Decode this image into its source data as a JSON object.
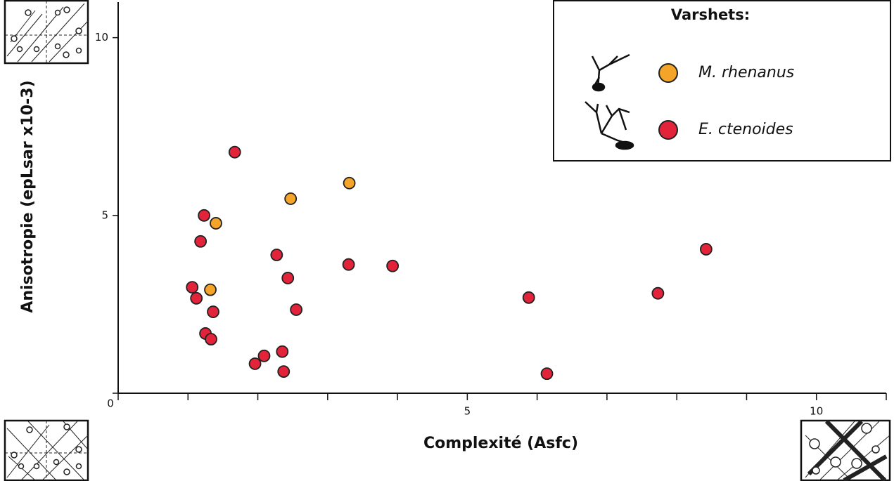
{
  "chart_data": {
    "type": "scatter",
    "x_label": "Complexité (Asfc)",
    "y_label": "Anisotropie (epLsar x10-3)",
    "xlim": [
      0,
      11
    ],
    "ylim": [
      0,
      11
    ],
    "xticks": [
      0,
      5,
      10
    ],
    "yticks": [
      0,
      5,
      10
    ],
    "xminorticks": [
      1,
      2,
      3,
      4,
      6,
      7,
      8,
      9,
      11
    ],
    "legend_title": "Varshets:",
    "legend_position": "upper right",
    "series": [
      {
        "name": "M. rhenanus",
        "color": "#f4a428",
        "x": [
          2.47,
          3.31,
          1.4,
          1.32
        ],
        "values": [
          5.47,
          5.91,
          4.78,
          2.91
        ]
      },
      {
        "name": "E. ctenoides",
        "color": "#e2233a",
        "x": [
          1.67,
          1.23,
          1.18,
          2.27,
          3.3,
          3.93,
          8.42,
          2.43,
          1.06,
          1.12,
          1.36,
          2.55,
          5.88,
          7.73,
          1.25,
          1.33,
          2.35,
          2.09,
          1.96,
          2.37,
          6.14
        ],
        "values": [
          6.78,
          5.0,
          4.27,
          3.89,
          3.62,
          3.58,
          4.05,
          3.24,
          2.98,
          2.67,
          2.29,
          2.35,
          2.69,
          2.81,
          1.68,
          1.52,
          1.17,
          1.05,
          0.83,
          0.61,
          0.55
        ]
      }
    ]
  }
}
